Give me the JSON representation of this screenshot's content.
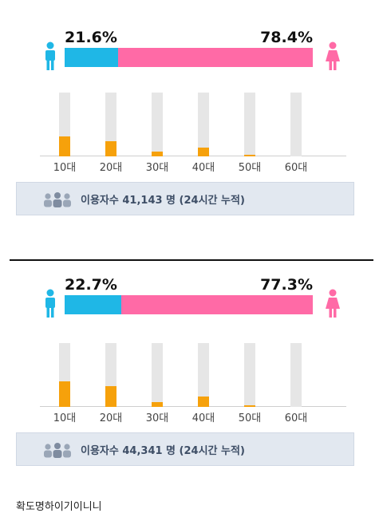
{
  "panels": [
    {
      "male_percent_label": "21.6%",
      "female_percent_label": "78.4%",
      "male_share": 21.6,
      "female_share": 78.4,
      "age_groups": [
        {
          "label": "10대",
          "level": 0.31
        },
        {
          "label": "20대",
          "level": 0.24
        },
        {
          "label": "30대",
          "level": 0.08
        },
        {
          "label": "40대",
          "level": 0.14
        },
        {
          "label": "50대",
          "level": 0.03
        },
        {
          "label": "60대",
          "level": 0.0
        }
      ],
      "user_count_text": "이용자수 41,143 명 (24시간 누적)"
    },
    {
      "male_percent_label": "22.7%",
      "female_percent_label": "77.3%",
      "male_share": 22.7,
      "female_share": 77.3,
      "age_groups": [
        {
          "label": "10대",
          "level": 0.4
        },
        {
          "label": "20대",
          "level": 0.32
        },
        {
          "label": "30대",
          "level": 0.07
        },
        {
          "label": "40대",
          "level": 0.16
        },
        {
          "label": "50대",
          "level": 0.03
        },
        {
          "label": "60대",
          "level": 0.0
        }
      ],
      "user_count_text": "이용자수 44,341 명 (24시간 누적)"
    }
  ],
  "footer_text": "확도명하이기이니니",
  "colors": {
    "male": "#1fb7e6",
    "female": "#ff6aa6",
    "age_fill": "#f6a10b",
    "track": "#e6e6e6",
    "info_bg": "#e2e8f0"
  },
  "icons": {
    "male": "male-person-icon",
    "female": "female-person-icon",
    "users": "users-group-icon"
  }
}
